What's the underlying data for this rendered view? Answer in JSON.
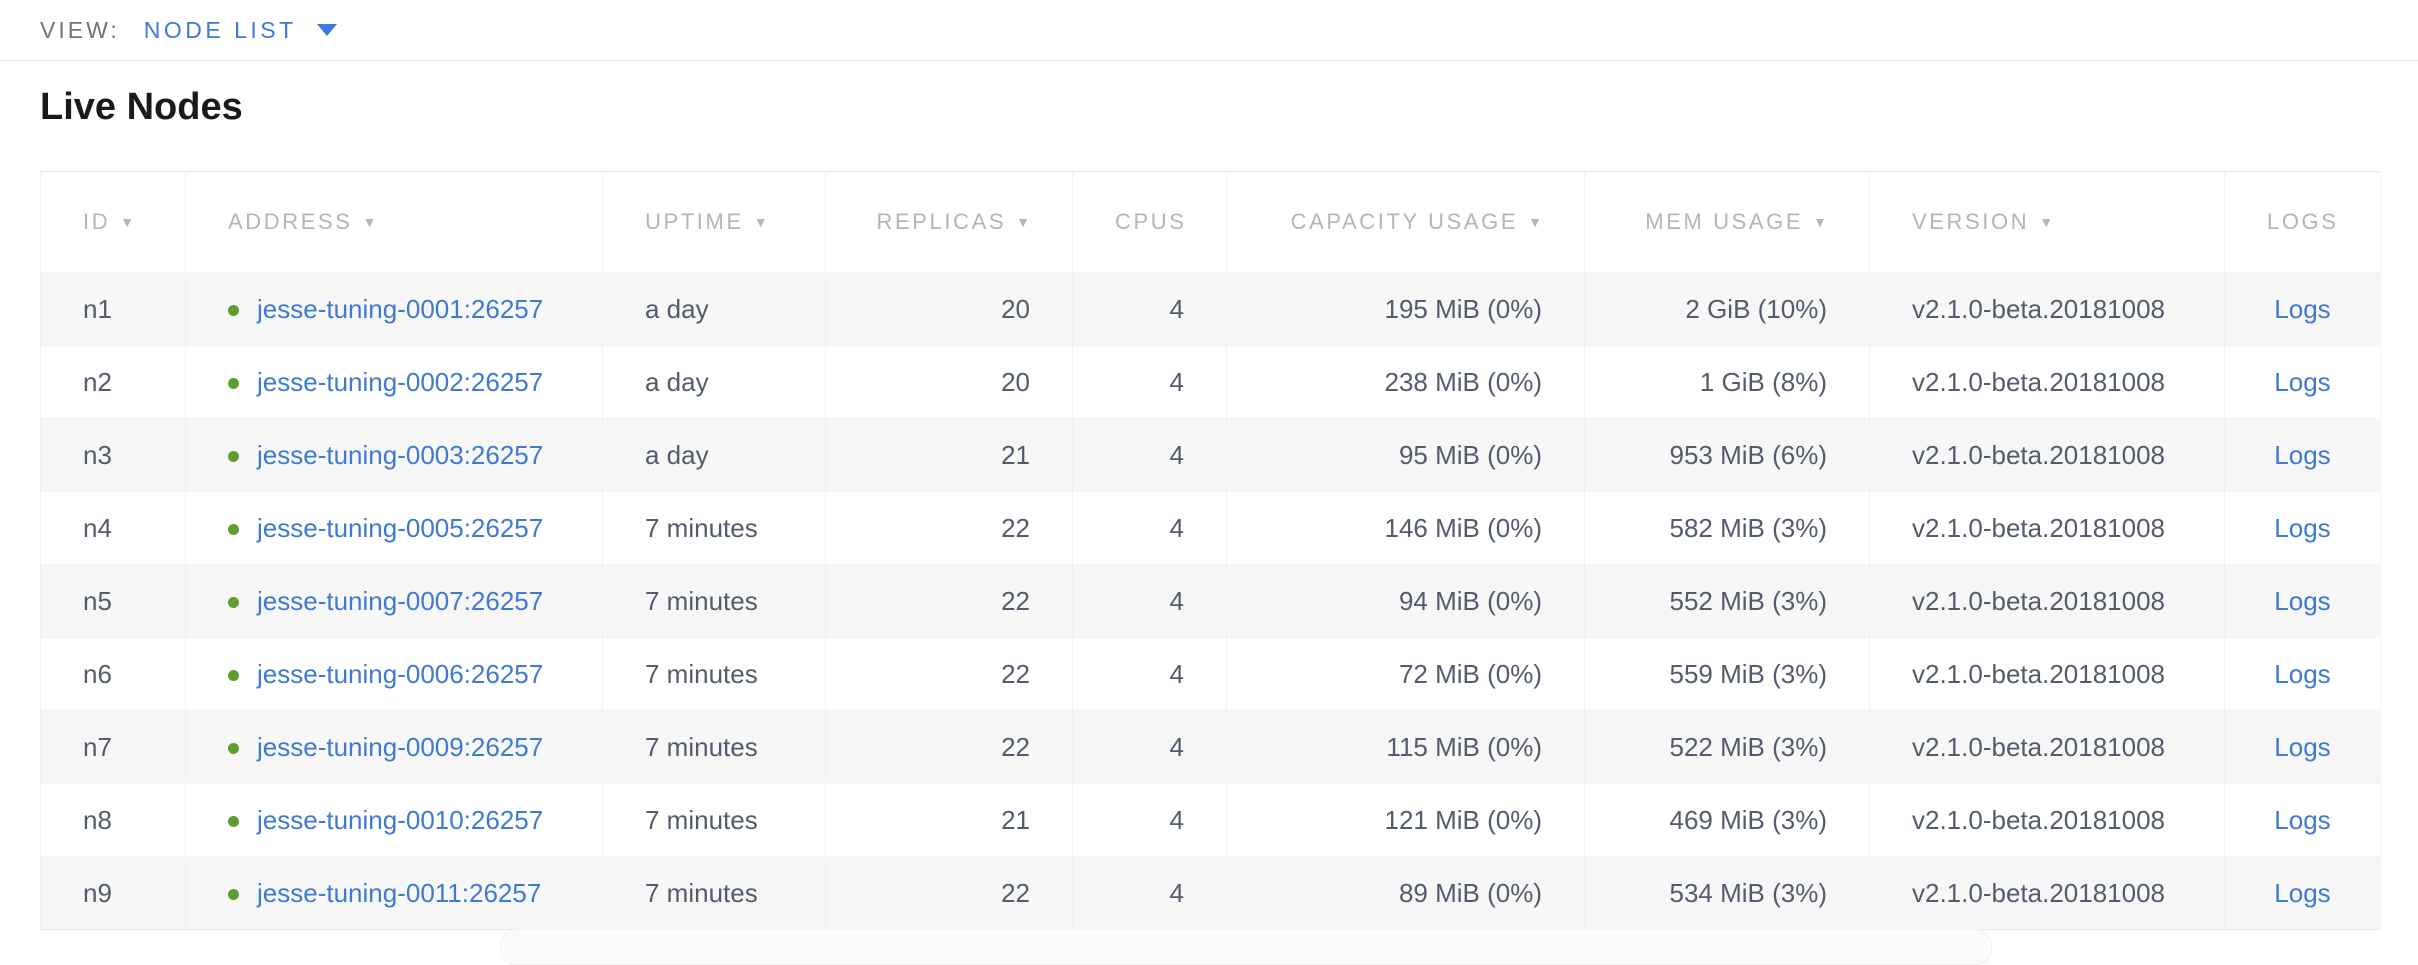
{
  "view_bar": {
    "label": "VIEW:",
    "selected": "NODE LIST"
  },
  "page": {
    "title": "Live Nodes"
  },
  "table": {
    "columns": [
      {
        "key": "id",
        "label": "ID",
        "sortable": true,
        "align": "left"
      },
      {
        "key": "address",
        "label": "ADDRESS",
        "sortable": true,
        "align": "left"
      },
      {
        "key": "uptime",
        "label": "UPTIME",
        "sortable": true,
        "align": "left"
      },
      {
        "key": "replicas",
        "label": "REPLICAS",
        "sortable": true,
        "align": "right"
      },
      {
        "key": "cpus",
        "label": "CPUS",
        "sortable": false,
        "align": "right"
      },
      {
        "key": "capacity",
        "label": "CAPACITY USAGE",
        "sortable": true,
        "align": "right"
      },
      {
        "key": "mem",
        "label": "MEM USAGE",
        "sortable": true,
        "align": "right"
      },
      {
        "key": "version",
        "label": "VERSION",
        "sortable": true,
        "align": "left"
      },
      {
        "key": "logs",
        "label": "LOGS",
        "sortable": false,
        "align": "center"
      }
    ],
    "rows": [
      {
        "id": "n1",
        "address": "jesse-tuning-0001:26257",
        "uptime": "a day",
        "replicas": "20",
        "cpus": "4",
        "capacity": "195 MiB (0%)",
        "mem": "2 GiB (10%)",
        "version": "v2.1.0-beta.20181008",
        "logs": "Logs"
      },
      {
        "id": "n2",
        "address": "jesse-tuning-0002:26257",
        "uptime": "a day",
        "replicas": "20",
        "cpus": "4",
        "capacity": "238 MiB (0%)",
        "mem": "1 GiB (8%)",
        "version": "v2.1.0-beta.20181008",
        "logs": "Logs"
      },
      {
        "id": "n3",
        "address": "jesse-tuning-0003:26257",
        "uptime": "a day",
        "replicas": "21",
        "cpus": "4",
        "capacity": "95 MiB (0%)",
        "mem": "953 MiB (6%)",
        "version": "v2.1.0-beta.20181008",
        "logs": "Logs"
      },
      {
        "id": "n4",
        "address": "jesse-tuning-0005:26257",
        "uptime": "7 minutes",
        "replicas": "22",
        "cpus": "4",
        "capacity": "146 MiB (0%)",
        "mem": "582 MiB (3%)",
        "version": "v2.1.0-beta.20181008",
        "logs": "Logs"
      },
      {
        "id": "n5",
        "address": "jesse-tuning-0007:26257",
        "uptime": "7 minutes",
        "replicas": "22",
        "cpus": "4",
        "capacity": "94 MiB (0%)",
        "mem": "552 MiB (3%)",
        "version": "v2.1.0-beta.20181008",
        "logs": "Logs"
      },
      {
        "id": "n6",
        "address": "jesse-tuning-0006:26257",
        "uptime": "7 minutes",
        "replicas": "22",
        "cpus": "4",
        "capacity": "72 MiB (0%)",
        "mem": "559 MiB (3%)",
        "version": "v2.1.0-beta.20181008",
        "logs": "Logs"
      },
      {
        "id": "n7",
        "address": "jesse-tuning-0009:26257",
        "uptime": "7 minutes",
        "replicas": "22",
        "cpus": "4",
        "capacity": "115 MiB (0%)",
        "mem": "522 MiB (3%)",
        "version": "v2.1.0-beta.20181008",
        "logs": "Logs"
      },
      {
        "id": "n8",
        "address": "jesse-tuning-0010:26257",
        "uptime": "7 minutes",
        "replicas": "21",
        "cpus": "4",
        "capacity": "121 MiB (0%)",
        "mem": "469 MiB (3%)",
        "version": "v2.1.0-beta.20181008",
        "logs": "Logs"
      },
      {
        "id": "n9",
        "address": "jesse-tuning-0011:26257",
        "uptime": "7 minutes",
        "replicas": "22",
        "cpus": "4",
        "capacity": "89 MiB (0%)",
        "mem": "534 MiB (3%)",
        "version": "v2.1.0-beta.20181008",
        "logs": "Logs"
      }
    ]
  },
  "icons": {
    "sort_arrow": "▼",
    "node_status": "green-dot"
  },
  "colors": {
    "accent_blue": "#3d78dc",
    "link_blue": "#3e7ad3",
    "status_green": "#5f9e2e",
    "header_gray": "#b2b5ba",
    "cell_text": "#535c6c",
    "alt_row_bg": "#f7f7f8"
  }
}
